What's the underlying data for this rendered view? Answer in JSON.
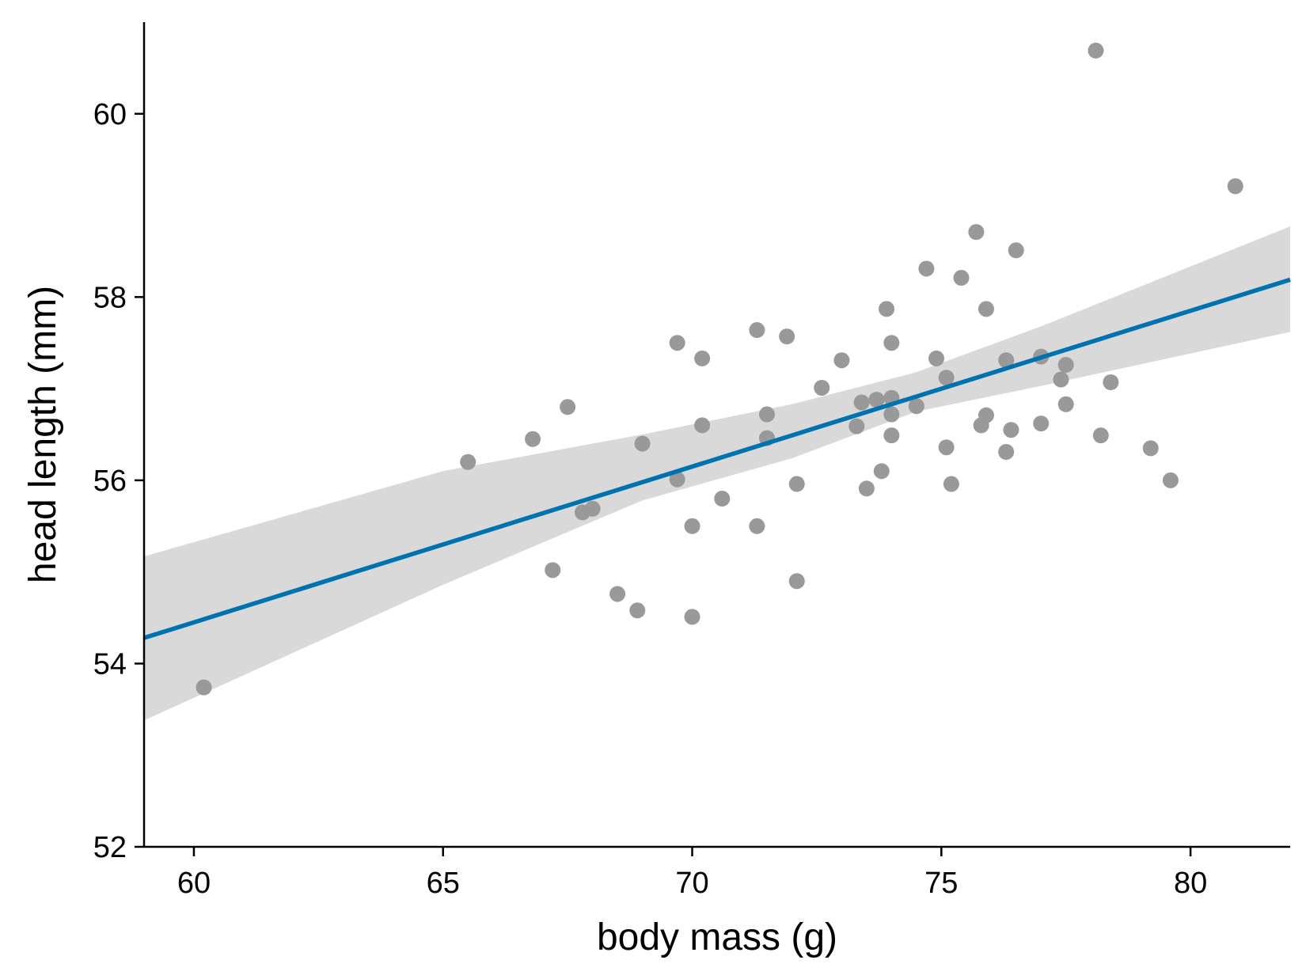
{
  "chart_data": {
    "type": "scatter",
    "title": "",
    "xlabel": "body mass (g)",
    "ylabel": "head length (mm)",
    "xlim": [
      59,
      82
    ],
    "ylim": [
      52,
      61
    ],
    "x_ticks": [
      "60",
      "65",
      "70",
      "75",
      "80"
    ],
    "y_ticks": [
      "52",
      "54",
      "56",
      "58",
      "60"
    ],
    "grid": false,
    "legend": "none",
    "point_color": "#999999",
    "fit_line_color": "#0072B2",
    "confidence_band_color": "#D9D9D9",
    "points": [
      [
        60.2,
        53.74
      ],
      [
        65.5,
        56.2
      ],
      [
        66.8,
        56.45
      ],
      [
        67.2,
        55.02
      ],
      [
        67.5,
        56.8
      ],
      [
        67.8,
        55.65
      ],
      [
        68.0,
        55.69
      ],
      [
        68.5,
        54.76
      ],
      [
        68.9,
        54.58
      ],
      [
        69.0,
        56.4
      ],
      [
        69.7,
        56.01
      ],
      [
        69.7,
        57.5
      ],
      [
        70.0,
        55.5
      ],
      [
        70.0,
        54.51
      ],
      [
        70.2,
        56.6
      ],
      [
        70.2,
        57.33
      ],
      [
        70.6,
        55.8
      ],
      [
        71.3,
        55.5
      ],
      [
        71.3,
        57.64
      ],
      [
        71.5,
        56.72
      ],
      [
        71.5,
        56.46
      ],
      [
        71.9,
        57.57
      ],
      [
        72.1,
        55.96
      ],
      [
        72.1,
        54.9
      ],
      [
        72.6,
        57.01
      ],
      [
        73.0,
        57.31
      ],
      [
        73.3,
        56.59
      ],
      [
        73.4,
        56.85
      ],
      [
        73.5,
        55.91
      ],
      [
        73.7,
        56.88
      ],
      [
        73.8,
        56.1
      ],
      [
        73.9,
        57.87
      ],
      [
        74.0,
        56.9
      ],
      [
        74.0,
        56.72
      ],
      [
        74.0,
        57.5
      ],
      [
        74.0,
        56.49
      ],
      [
        74.5,
        56.81
      ],
      [
        74.7,
        58.31
      ],
      [
        74.9,
        57.33
      ],
      [
        75.1,
        57.12
      ],
      [
        75.1,
        56.36
      ],
      [
        75.2,
        55.96
      ],
      [
        75.4,
        58.21
      ],
      [
        75.7,
        58.71
      ],
      [
        75.8,
        56.6
      ],
      [
        75.9,
        56.71
      ],
      [
        75.9,
        57.87
      ],
      [
        76.3,
        57.31
      ],
      [
        76.3,
        56.31
      ],
      [
        76.4,
        56.55
      ],
      [
        76.5,
        58.51
      ],
      [
        77.0,
        57.35
      ],
      [
        77.0,
        56.62
      ],
      [
        77.4,
        57.1
      ],
      [
        77.5,
        57.26
      ],
      [
        77.5,
        56.83
      ],
      [
        78.1,
        60.69
      ],
      [
        78.2,
        56.49
      ],
      [
        78.4,
        57.07
      ],
      [
        79.2,
        56.35
      ],
      [
        79.6,
        56.0
      ],
      [
        80.9,
        59.21
      ]
    ],
    "fit_line": {
      "x": [
        59,
        82
      ],
      "y": [
        54.28,
        58.19
      ]
    },
    "confidence_band": {
      "x": [
        59,
        65,
        69,
        72,
        74.5,
        77,
        82
      ],
      "lower": [
        53.38,
        54.86,
        55.78,
        56.24,
        56.75,
        57.03,
        57.62
      ],
      "upper": [
        55.17,
        56.1,
        56.5,
        56.83,
        57.18,
        57.68,
        58.77
      ]
    }
  }
}
